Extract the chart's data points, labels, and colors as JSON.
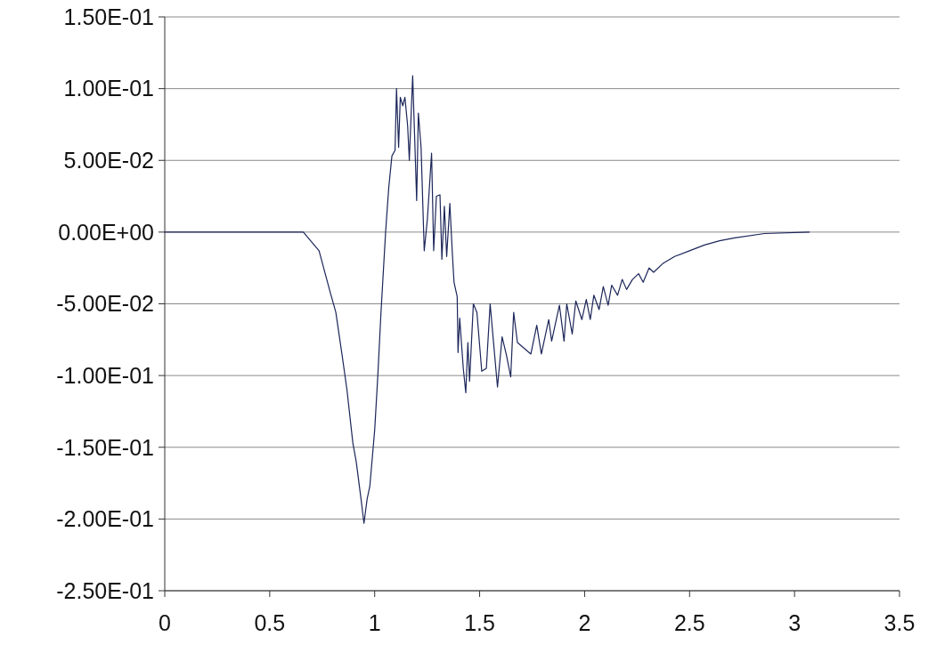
{
  "chart_data": {
    "type": "line",
    "color": "#1c2659",
    "x": [
      0,
      0.3,
      0.6,
      0.66,
      0.735,
      0.79,
      0.815,
      0.845,
      0.868,
      0.896,
      0.912,
      0.934,
      0.949,
      0.964,
      0.977,
      1.0,
      1.015,
      1.03,
      1.052,
      1.067,
      1.082,
      1.097,
      1.104,
      1.114,
      1.122,
      1.134,
      1.144,
      1.157,
      1.165,
      1.181,
      1.19,
      1.2,
      1.208,
      1.221,
      1.236,
      1.251,
      1.271,
      1.281,
      1.294,
      1.311,
      1.32,
      1.332,
      1.343,
      1.358,
      1.37,
      1.378,
      1.393,
      1.397,
      1.405,
      1.422,
      1.434,
      1.444,
      1.452,
      1.47,
      1.487,
      1.51,
      1.532,
      1.55,
      1.568,
      1.585,
      1.607,
      1.628,
      1.648,
      1.662,
      1.68,
      1.744,
      1.772,
      1.794,
      1.829,
      1.843,
      1.88,
      1.902,
      1.915,
      1.941,
      1.958,
      1.987,
      2.008,
      2.027,
      2.044,
      2.069,
      2.089,
      2.112,
      2.129,
      2.157,
      2.179,
      2.2,
      2.228,
      2.257,
      2.279,
      2.307,
      2.329,
      2.372,
      2.429,
      2.5,
      2.571,
      2.643,
      2.715,
      2.857,
      3.07
    ],
    "values": [
      0,
      0,
      0,
      0,
      -0.013,
      -0.043,
      -0.056,
      -0.086,
      -0.11,
      -0.147,
      -0.16,
      -0.185,
      -0.203,
      -0.186,
      -0.177,
      -0.138,
      -0.1,
      -0.056,
      0,
      0.031,
      0.053,
      0.057,
      0.1,
      0.059,
      0.094,
      0.088,
      0.094,
      0.074,
      0.05,
      0.109,
      0.068,
      0.022,
      0.083,
      0.059,
      -0.013,
      0.009,
      0.055,
      -0.013,
      0.025,
      0.026,
      -0.019,
      0.018,
      -0.017,
      0.02,
      -0.015,
      -0.035,
      -0.045,
      -0.084,
      -0.06,
      -0.095,
      -0.112,
      -0.077,
      -0.104,
      -0.05,
      -0.056,
      -0.097,
      -0.095,
      -0.05,
      -0.08,
      -0.108,
      -0.073,
      -0.086,
      -0.101,
      -0.056,
      -0.077,
      -0.085,
      -0.065,
      -0.085,
      -0.061,
      -0.076,
      -0.051,
      -0.076,
      -0.05,
      -0.071,
      -0.048,
      -0.061,
      -0.047,
      -0.061,
      -0.044,
      -0.054,
      -0.038,
      -0.051,
      -0.037,
      -0.044,
      -0.033,
      -0.04,
      -0.033,
      -0.029,
      -0.035,
      -0.025,
      -0.028,
      -0.022,
      -0.017,
      -0.013,
      -0.009,
      -0.006,
      -0.004,
      -0.001,
      0
    ],
    "xlim": [
      0,
      3.5
    ],
    "xticks": [
      0,
      0.5,
      1,
      1.5,
      2,
      2.5,
      3,
      3.5
    ],
    "ylim": [
      -0.25,
      0.15
    ],
    "yticks": [
      {
        "value": -0.25,
        "label": "-2.50E-01"
      },
      {
        "value": -0.2,
        "label": "-2.00E-01"
      },
      {
        "value": -0.15,
        "label": "-1.50E-01"
      },
      {
        "value": -0.1,
        "label": "-1.00E-01"
      },
      {
        "value": -0.05,
        "label": "-5.00E-02"
      },
      {
        "value": 0,
        "label": "0.00E+00"
      },
      {
        "value": 0.05,
        "label": "5.00E-02"
      },
      {
        "value": 0.1,
        "label": "1.00E-01"
      },
      {
        "value": 0.15,
        "label": "1.50E-01"
      }
    ],
    "grid": "y",
    "marker": "none",
    "line_style": "solid"
  }
}
